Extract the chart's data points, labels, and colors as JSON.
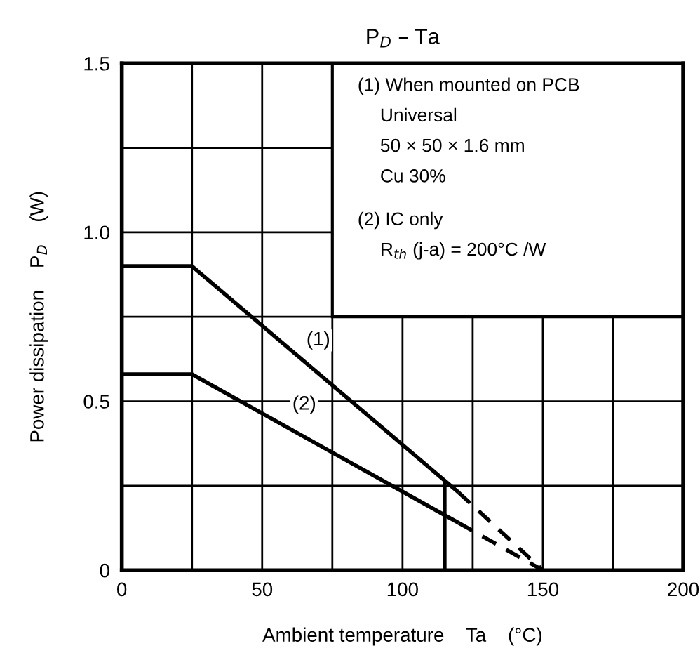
{
  "chart_data": {
    "type": "line",
    "title": "P$_{D}$ – Ta",
    "xlabel": "Ambient temperature    Ta    (°C)",
    "ylabel": "Power dissipation    P$_{D}$    (W)",
    "x": [
      0,
      25,
      120
    ],
    "series": [
      {
        "color": "#000000",
        "values": [
          0.9,
          0.9,
          0.23
        ],
        "line_style": "solid"
      },
      {
        "color": "#000000",
        "values": [
          0.58,
          0.58,
          0.14
        ],
        "line_style": "solid"
      },
      {
        "color": "#000000",
        "x": [
          120,
          150
        ],
        "values": [
          0.23,
          0
        ],
        "line_style": "dashed"
      },
      {
        "color": "#000000",
        "x": [
          120,
          150
        ],
        "values": [
          0.14,
          0
        ],
        "line_style": "dashed"
      },
      {
        "color": "#000000",
        "x": [
          115,
          115
        ],
        "values": [
          0,
          0.26
        ],
        "line_style": "solid"
      }
    ],
    "xlim": [
      0,
      200
    ],
    "ylim": [
      0,
      1.5
    ],
    "xticks": [
      0,
      {
        "value": 25,
        "label": null
      },
      50,
      {
        "value": 75,
        "label": null
      },
      100,
      {
        "value": 125,
        "label": null
      },
      150,
      {
        "value": 175,
        "label": null
      },
      200
    ],
    "yticks": [
      0,
      {
        "value": 0.25,
        "label": null
      },
      0.5,
      {
        "value": 0.75,
        "label": null
      },
      {
        "value": 1.0,
        "label": "1.0"
      },
      {
        "value": 1.25,
        "label": null
      },
      1.5
    ],
    "grid": true,
    "legend": false,
    "marker": "none",
    "annotations": [
      {
        "text": "(1)",
        "x": 70,
        "y": 0.68
      },
      {
        "text": "(2)",
        "x": 65,
        "y": 0.49
      },
      "(1) When mounted on PCB",
      "Universal",
      "50 × 50 × 1.6 mm",
      "Cu 30%",
      "(2) IC only",
      "R$_{th}$ (j-a) = 200°C /W"
    ]
  }
}
